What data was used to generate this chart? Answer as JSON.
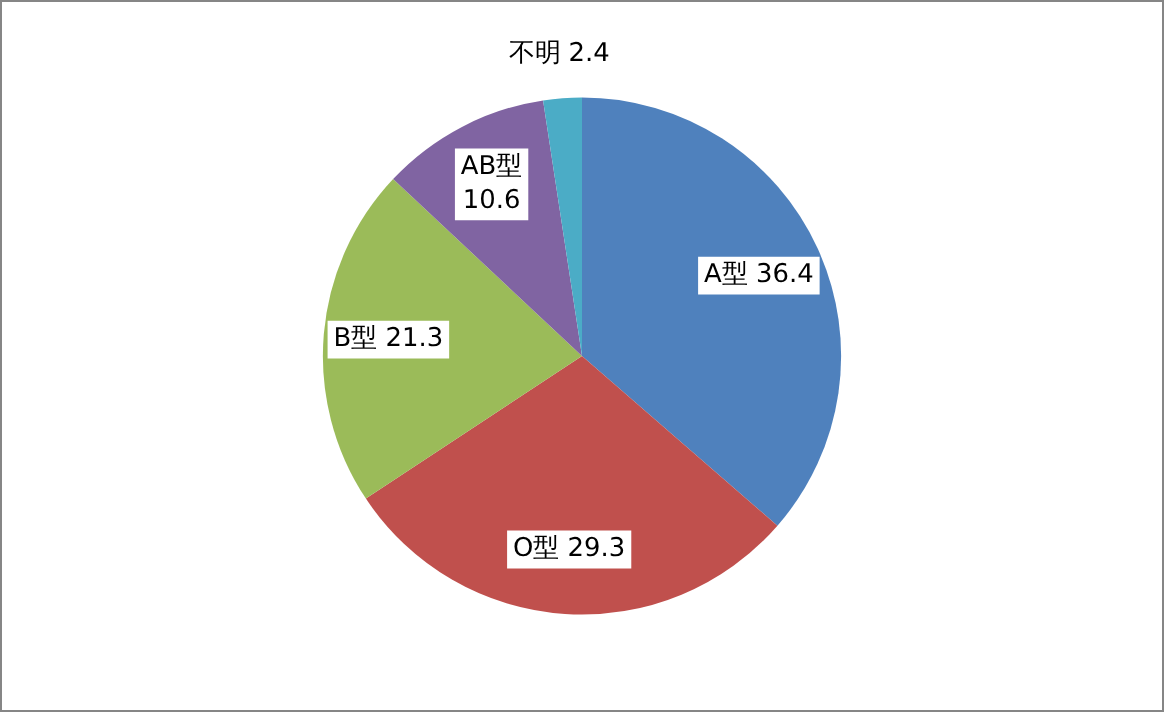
{
  "chart_data": {
    "type": "pie",
    "categories": [
      "A型",
      "O型",
      "B型",
      "AB型",
      "不明"
    ],
    "values": [
      36.4,
      29.3,
      21.3,
      10.6,
      2.4
    ],
    "colors": [
      "#4f81bd",
      "#c0504d",
      "#9bbb59",
      "#8064a2",
      "#4bacc6"
    ],
    "data_labels": true,
    "legend": false
  }
}
